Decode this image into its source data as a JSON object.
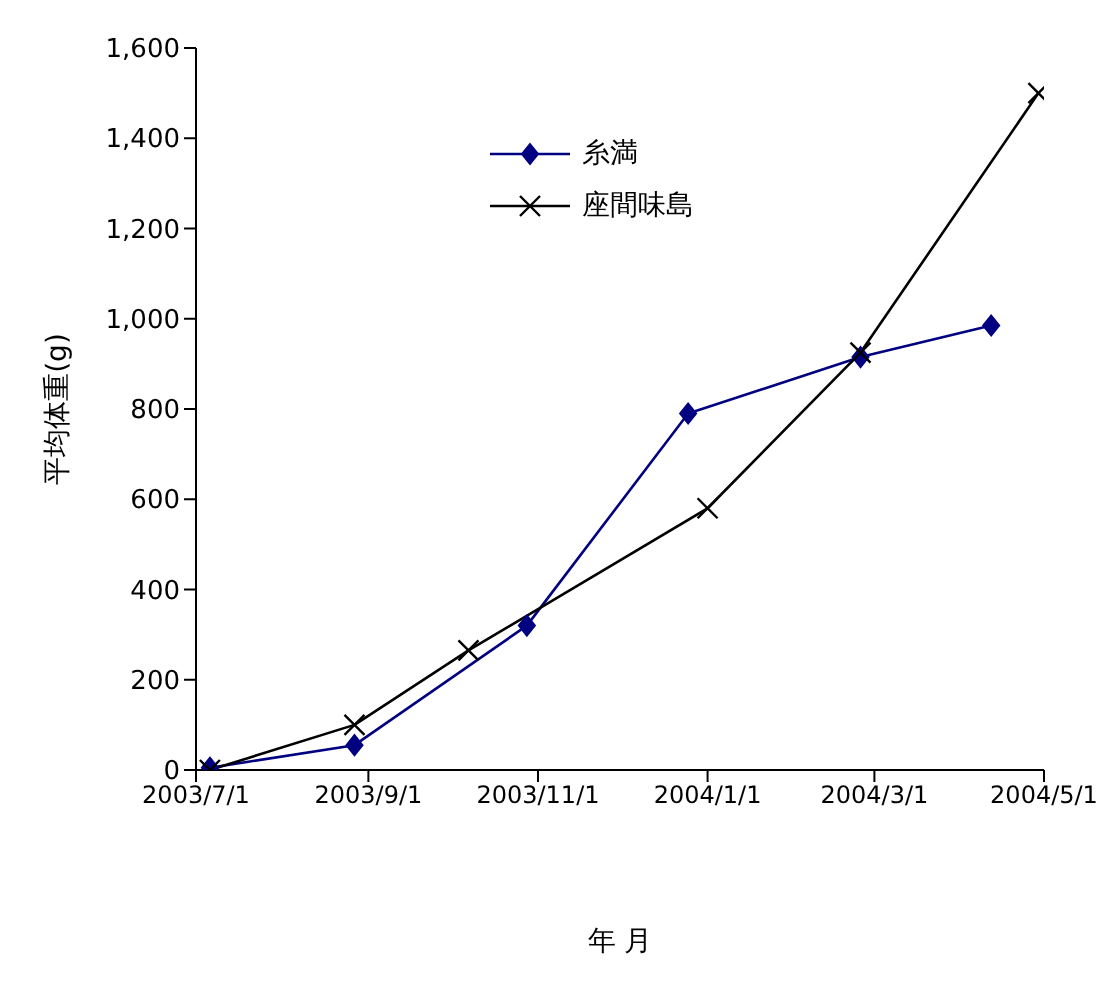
{
  "chart_data": {
    "type": "line",
    "xlabel": "年 月",
    "ylabel": "平均体重(g)",
    "series": [
      {
        "name": "糸満",
        "color": "#000080",
        "marker": "diamond",
        "x": [
          "2003-07-06",
          "2003-08-27",
          "2003-10-28",
          "2003-12-25",
          "2004-02-25",
          "2004-04-12"
        ],
        "values": [
          5,
          55,
          320,
          790,
          915,
          985
        ]
      },
      {
        "name": "座間味島",
        "color": "#000000",
        "marker": "cross",
        "x": [
          "2003-07-06",
          "2003-08-27",
          "2003-10-07",
          "2004-01-01",
          "2004-02-25",
          "2004-04-29"
        ],
        "values": [
          0,
          100,
          265,
          580,
          925,
          1500
        ]
      }
    ],
    "xlim": [
      "2003-07-01",
      "2004-05-01"
    ],
    "xticks": [
      {
        "value": "2003-07-01",
        "label": "2003/7/1"
      },
      {
        "value": "2003-09-01",
        "label": "2003/9/1"
      },
      {
        "value": "2003-11-01",
        "label": "2003/11/1"
      },
      {
        "value": "2004-01-01",
        "label": "2004/1/1"
      },
      {
        "value": "2004-03-01",
        "label": "2004/3/1"
      },
      {
        "value": "2004-05-01",
        "label": "2004/5/1"
      }
    ],
    "ylim": [
      0,
      1600
    ],
    "yticks": [
      0,
      200,
      400,
      600,
      800,
      {
        "value": 1000,
        "label": "1,000"
      },
      {
        "value": 1200,
        "label": "1,200"
      },
      {
        "value": 1400,
        "label": "1,400"
      },
      {
        "value": 1600,
        "label": "1,600"
      }
    ],
    "grid": false,
    "legend": "top",
    "line_style": "solid"
  }
}
